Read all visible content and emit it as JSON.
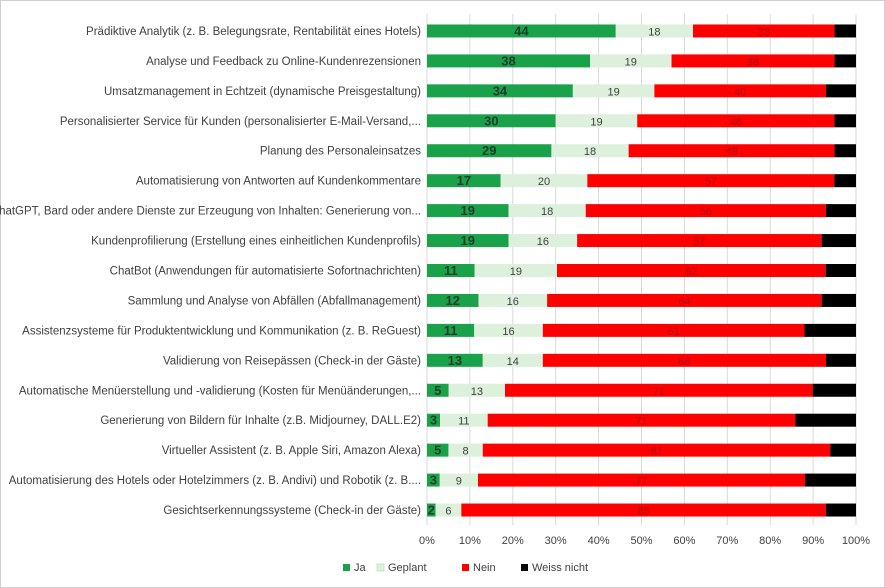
{
  "chart_data": {
    "type": "bar",
    "orientation": "horizontal",
    "stacked": "percent",
    "title": "",
    "xlabel": "",
    "ylabel": "",
    "xlim": [
      0,
      100
    ],
    "x_ticks": [
      "0%",
      "10%",
      "20%",
      "30%",
      "40%",
      "50%",
      "60%",
      "70%",
      "80%",
      "90%",
      "100%"
    ],
    "grid": "vertical",
    "legend_position": "bottom",
    "categories": [
      "Prädiktive Analytik (z. B. Belegungsrate, Rentabilität eines Hotels)",
      "Analyse und Feedback zu Online-Kundenrezensionen",
      "Umsatzmanagement in Echtzeit (dynamische Preisgestaltung)",
      "Personalisierter Service für Kunden (personalisierter E-Mail-Versand,...",
      "Planung des Personaleinsatzes",
      "Automatisierung von Antworten auf Kundenkommentare",
      "ChatGPT, Bard oder andere Dienste zur Erzeugung von Inhalten: Generierung von...",
      "Kundenprofilierung (Erstellung eines einheitlichen Kundenprofils)",
      "ChatBot (Anwendungen für automatisierte Sofortnachrichten)",
      "Sammlung und Analyse von Abfällen (Abfallmanagement)",
      "Assistenzsysteme für Produktentwicklung und Kommunikation (z. B. ReGuest)",
      "Validierung von Reisepässen (Check-in der Gäste)",
      "Automatische Menüerstellung und -validierung (Kosten für Menüänderungen,...",
      "Generierung von Bildern für Inhalte (z.B. Midjourney, DALL.E2)",
      "Virtueller Assistent (z. B. Apple Siri, Amazon Alexa)",
      "Automatisierung des Hotels oder Hotelzimmers (z. B. Andivi) und Robotik (z. B....",
      "Gesichtserkennungssysteme (Check-in der Gäste)"
    ],
    "series": [
      {
        "name": "Ja",
        "color": "#1aa24a",
        "values": [
          44,
          38,
          34,
          30,
          29,
          17,
          19,
          19,
          11,
          12,
          11,
          13,
          5,
          3,
          5,
          3,
          2
        ]
      },
      {
        "name": "Geplant",
        "color": "#dcf0dc",
        "values": [
          18,
          19,
          19,
          19,
          18,
          20,
          18,
          16,
          19,
          16,
          16,
          14,
          13,
          11,
          8,
          9,
          6
        ]
      },
      {
        "name": "Nein",
        "color": "#ff0000",
        "values": [
          33,
          38,
          40,
          46,
          48,
          57,
          56,
          57,
          62,
          64,
          61,
          66,
          71,
          71,
          81,
          77,
          85
        ]
      },
      {
        "name": "Weiss nicht",
        "color": "#000000",
        "values": [
          5,
          5,
          7,
          5,
          5,
          5,
          7,
          8,
          7,
          8,
          12,
          7,
          10,
          14,
          6,
          12,
          7
        ]
      }
    ]
  }
}
